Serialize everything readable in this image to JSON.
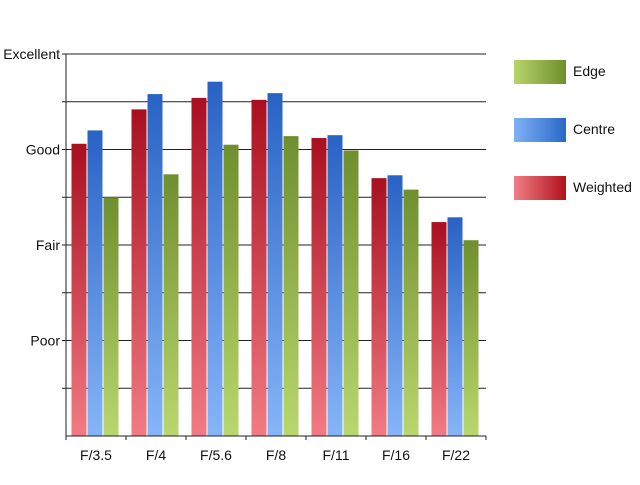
{
  "chart_data": {
    "type": "bar",
    "categories": [
      "F/3.5",
      "F/4",
      "F/5.6",
      "F/8",
      "F/11",
      "F/16",
      "F/22"
    ],
    "y_tick_labels": [
      {
        "label": "Poor",
        "value": 1
      },
      {
        "label": "Fair",
        "value": 2
      },
      {
        "label": "Good",
        "value": 3
      },
      {
        "label": "Excellent",
        "value": 4
      }
    ],
    "ylim": [
      0,
      4
    ],
    "grid": true,
    "legend_placement": "right",
    "series": [
      {
        "name": "Weighted",
        "color": "#c8102e",
        "values": [
          3.06,
          3.42,
          3.54,
          3.52,
          3.12,
          2.7,
          2.24
        ]
      },
      {
        "name": "Centre",
        "color": "#2f6fd0",
        "values": [
          3.2,
          3.58,
          3.71,
          3.59,
          3.15,
          2.73,
          2.29
        ]
      },
      {
        "name": "Edge",
        "color": "#7ea03a",
        "values": [
          2.5,
          2.74,
          3.05,
          3.14,
          2.99,
          2.58,
          2.05
        ]
      }
    ]
  },
  "legend": {
    "edge_label": "Edge",
    "centre_label": "Centre",
    "weighted_label": "Weighted"
  }
}
